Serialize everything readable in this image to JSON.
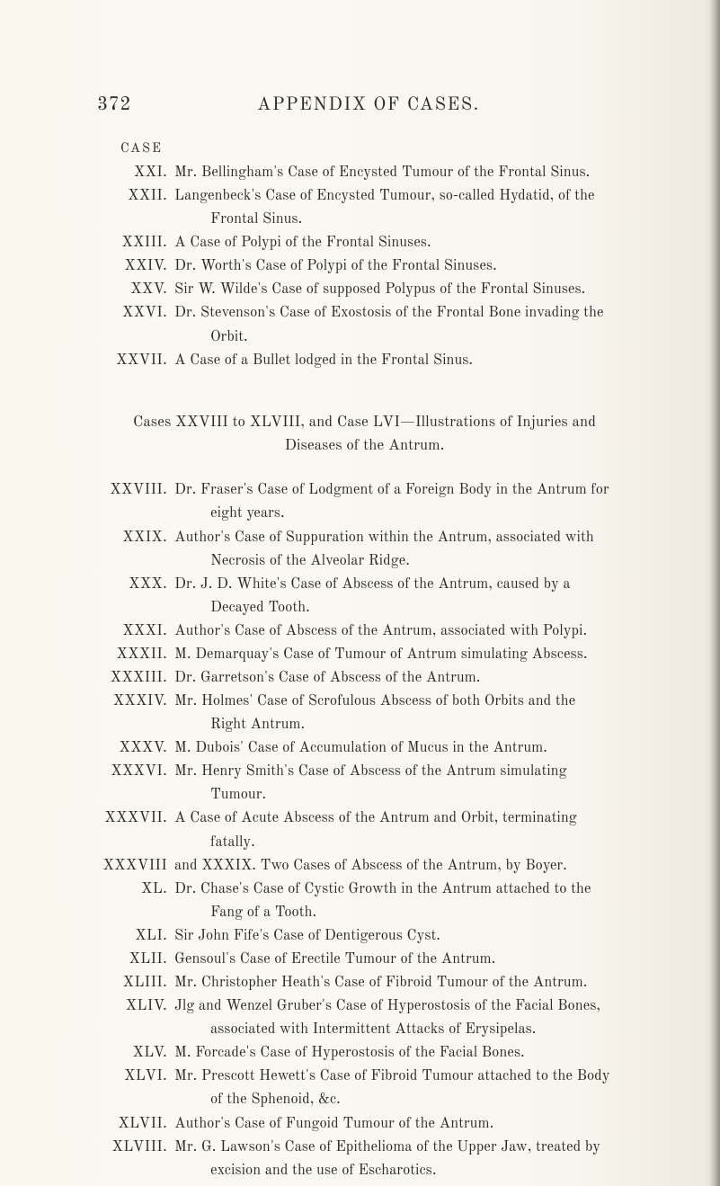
{
  "colors": {
    "page_bg": "#faf7f0",
    "text": "#2a2a28",
    "edge_shadow": "#dcd8ce"
  },
  "typography": {
    "body_font": "Century Schoolbook / Old Standard TT / Georgia serif",
    "body_size_pt": 12,
    "header_size_pt": 15,
    "pagenum_size_pt": 15,
    "case_label_size_pt": 10.5,
    "section_title_size_pt": 12.5,
    "line_height": 1.52
  },
  "page_number": "372",
  "header_title": "APPENDIX OF CASES.",
  "case_label": "CASE",
  "entries_a": [
    {
      "roman": "XXI.",
      "text": "Mr. Bellingham's Case of Encysted Tumour of the Frontal Sinus."
    },
    {
      "roman": "XXII.",
      "text": "Langenbeck's Case of Encysted Tumour, so-called Hydatid, of the",
      "wrap": "Frontal Sinus."
    },
    {
      "roman": "XXIII.",
      "text": "A Case of Polypi of the Frontal Sinuses."
    },
    {
      "roman": "XXIV.",
      "text": "Dr. Worth's Case of Polypi of the Frontal Sinuses."
    },
    {
      "roman": "XXV.",
      "text": "Sir W. Wilde's Case of supposed Polypus of the Frontal Sinuses."
    },
    {
      "roman": "XXVI.",
      "text": "Dr. Stevenson's Case of Exostosis of the Frontal Bone invading the",
      "wrap": "Orbit."
    },
    {
      "roman": "XXVII.",
      "text": "A Case of a Bullet lodged in the Frontal Sinus."
    }
  ],
  "section_title_line1": "Cases XXVIII to XLVIII, and Case LVI—Illustrations of Injuries and",
  "section_title_line2": "Diseases of the Antrum.",
  "entries_b": [
    {
      "roman": "XXVIII.",
      "text": "Dr. Fraser's Case of Lodgment of a Foreign Body in the Antrum for",
      "wrap": "eight years."
    },
    {
      "roman": "XXIX.",
      "text": "Author's Case of Suppuration within the Antrum, associated with",
      "wrap": "Necrosis of the Alveolar Ridge."
    },
    {
      "roman": "XXX.",
      "text": "Dr. J. D. White's Case of Abscess of the Antrum, caused by a",
      "wrap": "Decayed Tooth."
    },
    {
      "roman": "XXXI.",
      "text": "Author's Case of Abscess of the Antrum, associated with Polypi."
    },
    {
      "roman": "XXXII.",
      "text": "M. Demarquay's Case of Tumour of Antrum simulating Abscess."
    },
    {
      "roman": "XXXIII.",
      "text": "Dr. Garretson's Case of Abscess of the Antrum."
    },
    {
      "roman": "XXXIV.",
      "text": "Mr. Holmes' Case of Scrofulous Abscess of both Orbits and the",
      "wrap": "Right Antrum."
    },
    {
      "roman": "XXXV.",
      "text": "M. Dubois' Case of Accumulation of Mucus in the Antrum."
    },
    {
      "roman": "XXXVI.",
      "text": "Mr. Henry Smith's Case of Abscess of the Antrum simulating",
      "wrap": "Tumour."
    },
    {
      "roman": "XXXVII.",
      "text": "A Case of Acute Abscess of the Antrum and Orbit, terminating",
      "wrap": "fatally."
    },
    {
      "roman": "XXXVIII",
      "text": "and XXXIX. Two Cases of Abscess of the Antrum, by Boyer."
    },
    {
      "roman": "XL.",
      "text": "Dr. Chase's Case of Cystic Growth in the Antrum attached to the",
      "wrap": "Fang of a Tooth."
    },
    {
      "roman": "XLI.",
      "text": "Sir John Fife's Case of Dentigerous Cyst."
    },
    {
      "roman": "XLII.",
      "text": "Gensoul's Case of Erectile Tumour of the Antrum."
    },
    {
      "roman": "XLIII.",
      "text": "Mr. Christopher Heath's Case of Fibroid Tumour of the Antrum."
    },
    {
      "roman": "XLIV.",
      "text": "Jlg and Wenzel Gruber's Case of Hyperostosis of the Facial Bones,",
      "wrap": "associated with Intermittent Attacks of Erysipelas."
    },
    {
      "roman": "XLV.",
      "text": "M. Forcade's Case of Hyperostosis of the Facial Bones."
    },
    {
      "roman": "XLVI.",
      "text": "Mr. Prescott Hewett's Case of Fibroid Tumour attached to the Body",
      "wrap": "of the Sphenoid, &c."
    },
    {
      "roman": "XLVII.",
      "text": "Author's Case of Fungoid Tumour of the Antrum."
    },
    {
      "roman": "XLVIII.",
      "text": "Mr. G. Lawson's Case of Epithelioma of the Upper Jaw, treated by",
      "wrap": "excision and the use of Escharotics."
    }
  ]
}
